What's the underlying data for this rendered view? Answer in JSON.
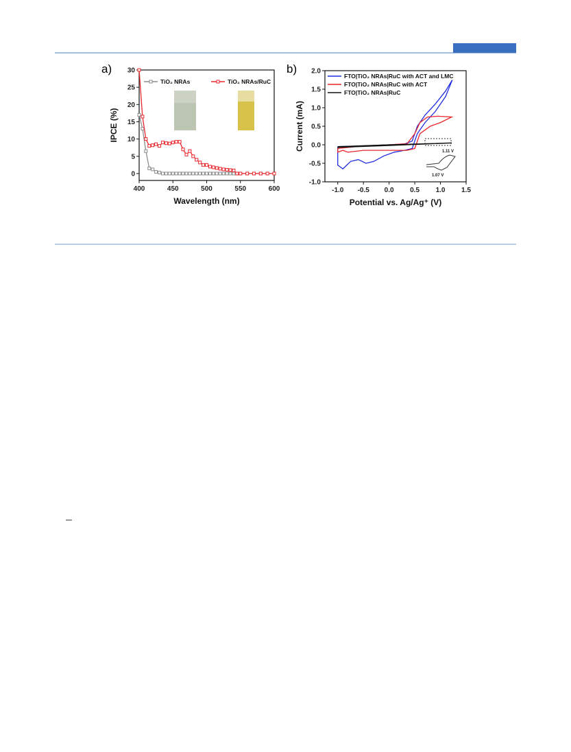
{
  "panel_labels": [
    "a)",
    "b)"
  ],
  "chart_data": [
    {
      "type": "line",
      "marker": "square",
      "x_label": "Wavelength (nm)",
      "y_label": "IPCE (%)",
      "xlim": [
        400,
        600
      ],
      "ylim": [
        -2,
        30
      ],
      "xticks": [
        400,
        450,
        500,
        550,
        600
      ],
      "yticks": [
        0,
        5,
        10,
        15,
        20,
        25,
        30
      ],
      "x": [
        400,
        405,
        410,
        415,
        420,
        425,
        430,
        435,
        440,
        445,
        450,
        455,
        460,
        465,
        470,
        475,
        480,
        485,
        490,
        495,
        500,
        505,
        510,
        515,
        520,
        525,
        530,
        535,
        540,
        545,
        550,
        560,
        570,
        580,
        590,
        600
      ],
      "series": [
        {
          "name": "TiO₂ NRAs",
          "color": "#8c8c8c",
          "values": [
            17,
            13,
            6.5,
            1.5,
            1.2,
            0.5,
            0.3,
            0,
            0,
            0,
            0,
            0,
            0,
            0,
            0,
            0,
            0,
            0,
            0,
            0,
            0,
            0,
            0,
            0,
            0,
            0,
            0,
            0,
            0,
            0,
            0,
            0,
            0,
            0,
            0,
            0
          ]
        },
        {
          "name": "TiO₂ NRAs/RuC",
          "color": "#e8262b",
          "values": [
            30,
            16.5,
            10,
            8,
            8.2,
            8.5,
            8,
            9,
            8.8,
            8.7,
            9,
            9.2,
            9.2,
            7,
            5.5,
            6.5,
            5,
            4,
            3.2,
            2.5,
            2.5,
            2,
            1.8,
            1.6,
            1.4,
            1.2,
            1.1,
            1,
            0.9,
            0,
            0,
            0,
            0,
            0,
            0,
            0
          ]
        }
      ]
    },
    {
      "type": "line",
      "marker": "none",
      "x_label": "Potential vs. Ag/Ag⁺ (V)",
      "y_label": "Current (mA)",
      "xlim": [
        -1.25,
        1.5
      ],
      "ylim": [
        -1.0,
        2.0
      ],
      "xticks": [
        {
          "value": -1.0,
          "label": "-1.0"
        },
        -0.5,
        {
          "value": 0,
          "label": "0.0"
        },
        0.5,
        {
          "value": 1,
          "label": "1.0"
        },
        1.5
      ],
      "yticks": [
        {
          "value": -1.0,
          "label": "-1.0"
        },
        -0.5,
        {
          "value": 0,
          "label": "0.0"
        },
        0.5,
        {
          "value": 1,
          "label": "1.0"
        },
        1.5,
        {
          "value": 2,
          "label": "2.0"
        }
      ],
      "annotations": [
        "1.11 V",
        "1.07 V"
      ],
      "series": [
        {
          "name": "FTO|TiO₂ NRAs|RuC with ACT and LMC",
          "color": "#1f2de0",
          "x": [
            -1.0,
            -0.5,
            0,
            0.3,
            0.45,
            0.55,
            0.7,
            0.9,
            1.1,
            1.23,
            1.1,
            0.9,
            0.7,
            0.55,
            0.45,
            0.3,
            0.1,
            -0.1,
            -0.3,
            -0.45,
            -0.6,
            -0.75,
            -0.9,
            -1.0,
            -1.0
          ],
          "values": [
            -0.05,
            -0.03,
            0,
            0.02,
            0.1,
            0.5,
            0.8,
            1.1,
            1.45,
            1.75,
            1.3,
            0.9,
            0.6,
            0.3,
            -0.1,
            -0.15,
            -0.2,
            -0.3,
            -0.45,
            -0.5,
            -0.4,
            -0.45,
            -0.65,
            -0.55,
            -0.05
          ]
        },
        {
          "name": "FTO|TiO₂ NRAs|RuC with ACT",
          "color": "#e8262b",
          "x": [
            -1.0,
            -0.5,
            0,
            0.35,
            0.5,
            0.6,
            0.75,
            0.95,
            1.22,
            1.0,
            0.8,
            0.6,
            0.5,
            0.35,
            0,
            -0.5,
            -0.8,
            -0.9,
            -1.0,
            -1.0
          ],
          "values": [
            -0.1,
            -0.03,
            0,
            0.03,
            0.3,
            0.6,
            0.75,
            0.77,
            0.75,
            0.6,
            0.5,
            0.3,
            -0.1,
            -0.15,
            -0.15,
            -0.15,
            -0.2,
            -0.15,
            -0.2,
            -0.1
          ]
        },
        {
          "name": "FTO|TiO₂ NRAs|RuC",
          "color": "#111111",
          "x": [
            -1.0,
            0,
            1.22,
            0,
            -1.0
          ],
          "values": [
            -0.05,
            0,
            0.05,
            -0.02,
            -0.07
          ]
        }
      ]
    }
  ]
}
